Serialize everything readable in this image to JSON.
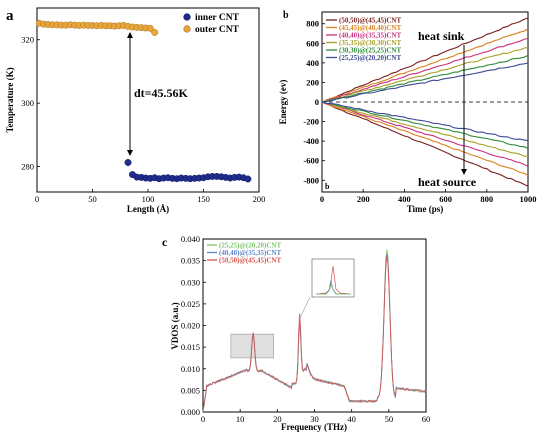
{
  "chart_data": [
    {
      "panel": "a",
      "type": "scatter",
      "xlabel": "Length (Å)",
      "ylabel": "Temperature (K)",
      "xlim": [
        0,
        200
      ],
      "ylim": [
        272,
        330
      ],
      "xticks": [
        0,
        50,
        100,
        150,
        200
      ],
      "yticks": [
        280,
        300,
        320
      ],
      "legend_position": "top-right",
      "annotation": "dt=45.56K",
      "series": [
        {
          "name": "outer CNT",
          "color": "#e8a53a",
          "x": [
            2,
            6,
            10,
            14,
            18,
            22,
            26,
            30,
            34,
            38,
            42,
            46,
            50,
            54,
            58,
            62,
            66,
            70,
            74,
            78,
            82,
            86,
            90,
            94,
            98,
            102,
            106
          ],
          "y": [
            325.2,
            324.9,
            324.8,
            324.7,
            324.7,
            324.6,
            324.6,
            324.7,
            324.6,
            324.5,
            324.6,
            324.5,
            324.5,
            324.4,
            324.5,
            324.4,
            324.4,
            324.3,
            324.4,
            324.5,
            324.2,
            324.0,
            323.9,
            323.8,
            323.7,
            323.6,
            322.3
          ]
        },
        {
          "name": "inner CNT",
          "color": "#1f2c8c",
          "x": [
            82,
            86,
            90,
            94,
            98,
            102,
            106,
            110,
            114,
            118,
            122,
            126,
            130,
            134,
            138,
            142,
            146,
            150,
            154,
            158,
            162,
            166,
            170,
            174,
            178,
            182,
            186,
            190
          ],
          "y": [
            281.3,
            277.5,
            276.7,
            276.6,
            276.4,
            276.3,
            276.5,
            276.2,
            276.4,
            276.5,
            276.3,
            276.2,
            276.4,
            276.3,
            276.2,
            276.3,
            276.4,
            276.5,
            276.8,
            276.9,
            276.9,
            276.8,
            276.6,
            276.4,
            276.6,
            276.7,
            276.5,
            276.1
          ]
        }
      ]
    },
    {
      "panel": "b",
      "type": "line",
      "xlabel": "Time (ps)",
      "ylabel": "Energy (ev)",
      "xlim": [
        0,
        1000
      ],
      "ylim": [
        -920,
        920
      ],
      "xticks": [
        0,
        200,
        400,
        600,
        800,
        1000
      ],
      "yticks": [
        -800,
        -600,
        -400,
        -200,
        0,
        200,
        400,
        600,
        800
      ],
      "legend_position": "top-left",
      "annotations": [
        "heat sink",
        "heat source"
      ],
      "corner_label": "b",
      "series": [
        {
          "name": "(50,50)@(45,45)CNT",
          "color": "#7a1f1f",
          "end_value": 860
        },
        {
          "name": "(45,45)@(40,40)CNT",
          "color": "#d9821e",
          "end_value": 745
        },
        {
          "name": "(40,40)@(35,35)CNT",
          "color": "#c9307e",
          "end_value": 650
        },
        {
          "name": "(35,35)@(30,30)CNT",
          "color": "#a8a024",
          "end_value": 560
        },
        {
          "name": "(30,30)@(25,25)CNT",
          "color": "#2e8b3a",
          "end_value": 470
        },
        {
          "name": "(25,25)@(20,20)CNT",
          "color": "#3d4b96",
          "end_value": 400
        }
      ]
    },
    {
      "panel": "c",
      "type": "line",
      "xlabel": "Frequency (THz)",
      "ylabel": "VDOS (a.u.)",
      "xlim": [
        0,
        60
      ],
      "ylim": [
        0,
        0.04
      ],
      "xticks": [
        0,
        10,
        20,
        30,
        40,
        50,
        60
      ],
      "yticks": [
        0,
        0.005,
        0.01,
        0.015,
        0.02,
        0.025,
        0.03,
        0.035,
        0.04
      ],
      "ytick_labels": [
        "0.000",
        "0.005",
        "0.010",
        "0.015",
        "0.020",
        "0.025",
        "0.030",
        "0.035",
        "0.040"
      ],
      "legend_position": "top-left",
      "highlight_box_x": [
        7.5,
        19
      ],
      "highlight_box_y": [
        0.0125,
        0.018
      ],
      "series": [
        {
          "name": "(25,25)@(20,20)CNT",
          "color": "#7cc36b"
        },
        {
          "name": "(40,40)@(35,35)CNT",
          "color": "#5b86c9"
        },
        {
          "name": "(50,50)@(45,45)CNT",
          "color": "#d9534f"
        }
      ],
      "peaks": [
        {
          "x": 13.5,
          "y": 0.0182
        },
        {
          "x": 26.0,
          "y": 0.0205
        },
        {
          "x": 49.5,
          "y": 0.0372
        }
      ]
    }
  ]
}
